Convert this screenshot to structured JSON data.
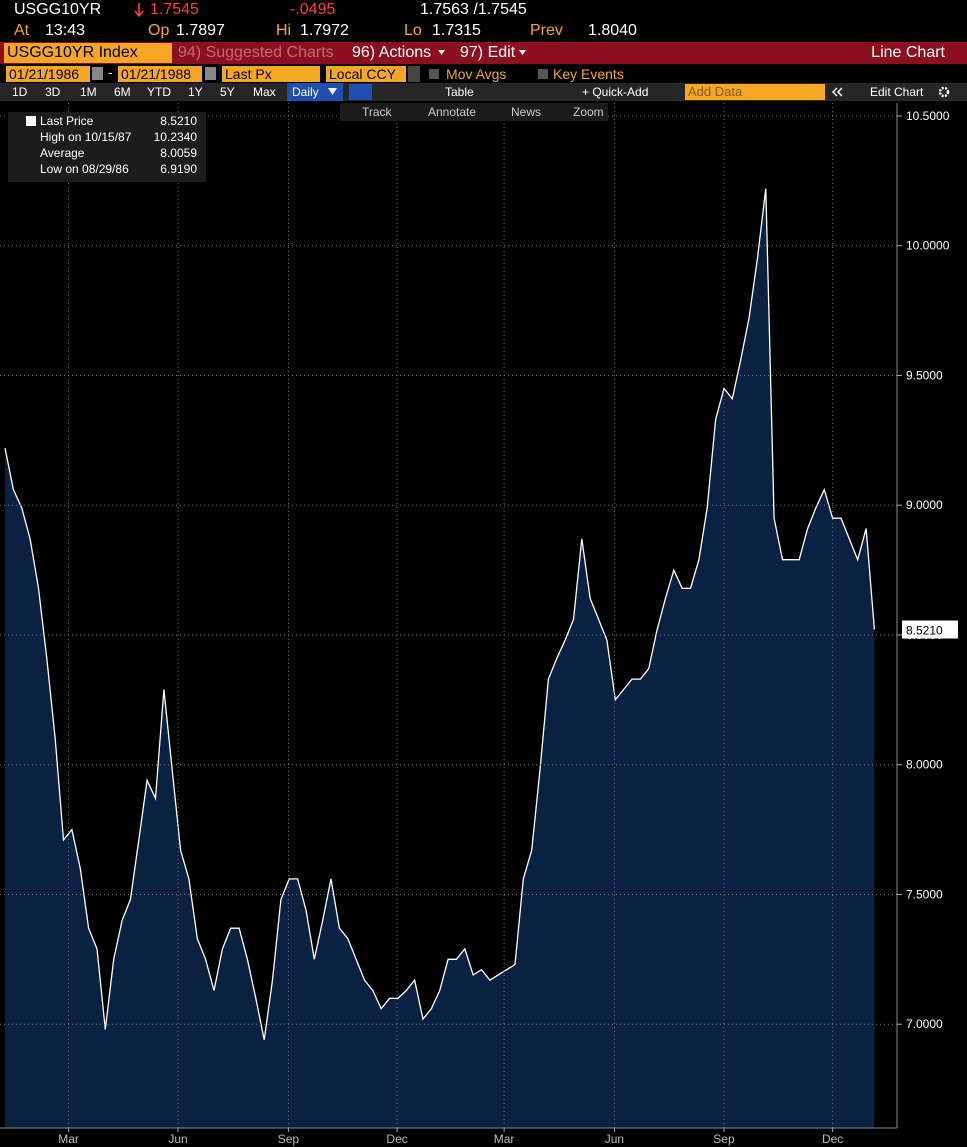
{
  "quote": {
    "ticker": "USGG10YR",
    "last": "1.7545",
    "change": "-.0495",
    "bid_ask": "1.7563 /1.7545",
    "time_label": "At",
    "time": "13:43",
    "open_label": "Op",
    "open": "1.7897",
    "high_label": "Hi",
    "high": "1.7972",
    "low_label": "Lo",
    "low": "1.7315",
    "prev_label": "Prev",
    "prev": "1.8040"
  },
  "toolbar": {
    "security": "USGG10YR Index",
    "menus": [
      "94) Suggested Charts",
      "96) Actions",
      "97) Edit"
    ],
    "view": "Line Chart"
  },
  "settings": {
    "start_date": "01/21/1986",
    "separator": "-",
    "end_date": "01/21/1988",
    "field": "Last Px",
    "currency": "Local CCY",
    "options": [
      "Mov Avgs",
      "Key Events"
    ]
  },
  "controls": {
    "periods": [
      "1D",
      "3D",
      "1M",
      "6M",
      "YTD",
      "1Y",
      "5Y",
      "Max"
    ],
    "frequency": "Daily",
    "table": "Table",
    "quick_add": "+ Quick-Add",
    "add_data": "Add Data",
    "edit_chart": "Edit Chart"
  },
  "tools": [
    "Track",
    "Annotate",
    "News",
    "Zoom"
  ],
  "chart_data": {
    "type": "area",
    "series": [
      {
        "name": "Last Price",
        "color": "#ffffff",
        "fill": "#0b2141",
        "values": [
          9.22,
          9.06,
          8.99,
          8.87,
          8.68,
          8.41,
          8.1,
          7.71,
          7.75,
          7.6,
          7.37,
          7.29,
          6.98,
          7.25,
          7.4,
          7.48,
          7.71,
          7.94,
          7.87,
          8.29,
          7.98,
          7.67,
          7.56,
          7.33,
          7.25,
          7.13,
          7.29,
          7.37,
          7.37,
          7.25,
          7.1,
          6.94,
          7.17,
          7.48,
          7.56,
          7.56,
          7.44,
          7.25,
          7.4,
          7.56,
          7.37,
          7.33,
          7.25,
          7.17,
          7.13,
          7.06,
          7.1,
          7.1,
          7.13,
          7.17,
          7.02,
          7.06,
          7.13,
          7.25,
          7.25,
          7.29,
          7.19,
          7.21,
          7.17,
          7.19,
          7.21,
          7.23,
          7.56,
          7.67,
          7.98,
          8.33,
          8.41,
          8.48,
          8.56,
          8.87,
          8.64,
          8.56,
          8.48,
          8.25,
          8.29,
          8.33,
          8.33,
          8.37,
          8.52,
          8.64,
          8.75,
          8.68,
          8.68,
          8.79,
          8.99,
          9.33,
          9.45,
          9.41,
          9.56,
          9.72,
          9.95,
          10.22,
          8.95,
          8.79,
          8.79,
          8.79,
          8.91,
          8.99,
          9.06,
          8.95,
          8.95,
          8.87,
          8.79,
          8.91,
          8.521
        ]
      }
    ],
    "last_label": "8.5210",
    "stats": [
      {
        "label": "High on 10/15/87",
        "value": "10.2340"
      },
      {
        "label": "Average",
        "value": "8.0059"
      },
      {
        "label": "Low on 08/29/86",
        "value": "6.9190"
      }
    ],
    "ylim": [
      6.6,
      10.55
    ],
    "yticks": [
      {
        "value": 7,
        "label": "7.0000"
      },
      {
        "value": 7.5,
        "label": "7.5000"
      },
      {
        "value": 8,
        "label": "8.0000"
      },
      {
        "value": 8.5,
        "label": "8.5000"
      },
      {
        "value": 9,
        "label": "9.0000"
      },
      {
        "value": 9.5,
        "label": "9.5000"
      },
      {
        "value": 10,
        "label": "10.0000"
      },
      {
        "value": 10.5,
        "label": "10.5000"
      }
    ],
    "xlim": [
      -0.6,
      106.7
    ],
    "xticks": [
      {
        "value": 7.6,
        "label": "Mar"
      },
      {
        "value": 20.7,
        "label": "Jun"
      },
      {
        "value": 33.9,
        "label": "Sep"
      },
      {
        "value": 46.9,
        "label": "Dec"
      },
      {
        "value": 59.7,
        "label": "Mar"
      },
      {
        "value": 72.9,
        "label": "Jun"
      },
      {
        "value": 86,
        "label": "Sep"
      },
      {
        "value": 99,
        "label": "Dec"
      }
    ],
    "grid": true
  }
}
